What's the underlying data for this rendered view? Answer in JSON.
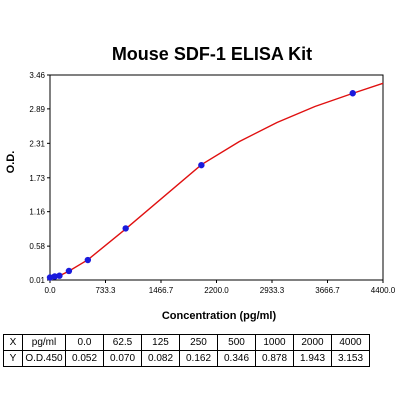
{
  "chart_data": {
    "type": "scatter",
    "title": "Mouse SDF-1 ELISA Kit",
    "xlabel": "Concentration (pg/ml)",
    "ylabel": "O.D.",
    "xlim": [
      0,
      4400
    ],
    "ylim": [
      0.01,
      3.46
    ],
    "x_ticks": [
      "0.0",
      "733.3",
      "1466.7",
      "2200.0",
      "2933.3",
      "3666.7",
      "4400.0"
    ],
    "y_ticks": [
      "0.01",
      "0.58",
      "1.16",
      "1.73",
      "2.31",
      "2.89",
      "3.46"
    ],
    "points": {
      "x": [
        0,
        62.5,
        125,
        250,
        500,
        1000,
        2000,
        4000
      ],
      "y": [
        0.052,
        0.07,
        0.082,
        0.162,
        0.346,
        0.878,
        1.943,
        3.153
      ]
    },
    "fit_curve": {
      "x": [
        0,
        62.5,
        125,
        250,
        500,
        1000,
        2000,
        2500,
        3000,
        3500,
        4000,
        4400
      ],
      "y": [
        0.03,
        0.06,
        0.08,
        0.16,
        0.35,
        0.87,
        1.95,
        2.34,
        2.66,
        2.93,
        3.15,
        3.32
      ]
    },
    "colors": {
      "points": "#1a1adc",
      "curve": "#e01010"
    }
  },
  "table": {
    "rows": [
      [
        "X",
        "pg/ml",
        "0.0",
        "62.5",
        "125",
        "250",
        "500",
        "1000",
        "2000",
        "4000"
      ],
      [
        "Y",
        "O.D.450",
        "0.052",
        "0.070",
        "0.082",
        "0.162",
        "0.346",
        "0.878",
        "1.943",
        "3.153"
      ]
    ]
  }
}
